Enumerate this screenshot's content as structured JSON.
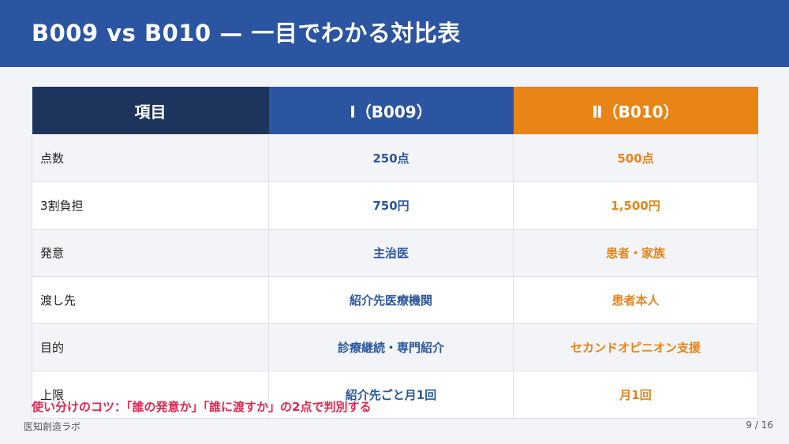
{
  "header": {
    "title": "B009 vs B010 — 一目でわかる対比表"
  },
  "table": {
    "headers": [
      "項目",
      "Ⅰ（B009）",
      "Ⅱ（B010）"
    ],
    "rows": [
      {
        "label": "点数",
        "b009": "250点",
        "b010": "500点"
      },
      {
        "label": "3割負担",
        "b009": "750円",
        "b010": "1,500円"
      },
      {
        "label": "発意",
        "b009": "主治医",
        "b010": "患者・家族"
      },
      {
        "label": "渡し先",
        "b009": "紹介先医療機関",
        "b010": "患者本人"
      },
      {
        "label": "目的",
        "b009": "診療継続・専門紹介",
        "b010": "セカンドオピニオン支援"
      },
      {
        "label": "上限",
        "b009": "紹介先ごと月1回",
        "b010": "月1回"
      }
    ]
  },
  "tip": "使い分けのコツ：「誰の発意か」「誰に渡すか」の2点で判別する",
  "footer": {
    "org": "医知創造ラボ",
    "page": "9 / 16"
  },
  "colors": {
    "header_bg": "#2b54a1",
    "col_item": "#1d355c",
    "col_b009": "#2b54a1",
    "col_b010": "#e98417",
    "tip_text": "#e0264f"
  }
}
